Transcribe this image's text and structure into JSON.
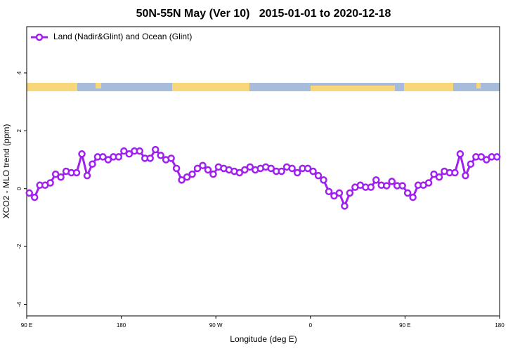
{
  "chart_data": {
    "type": "line",
    "title": "50N-55N May (Ver 10)   2015-01-01 to 2020-12-18",
    "xlabel": "Longitude (deg E)",
    "ylabel": "XCO2 - MLO trend (ppm)",
    "x": [
      92.5,
      97.5,
      102.5,
      107.5,
      112.5,
      117.5,
      122.5,
      127.5,
      132.5,
      137.5,
      142.5,
      147.5,
      152.5,
      157.5,
      162.5,
      167.5,
      172.5,
      177.5,
      182.5,
      187.5,
      192.5,
      197.5,
      202.5,
      207.5,
      212.5,
      217.5,
      222.5,
      227.5,
      232.5,
      237.5,
      242.5,
      247.5,
      252.5,
      257.5,
      262.5,
      267.5,
      272.5,
      277.5,
      282.5,
      287.5,
      292.5,
      297.5,
      302.5,
      307.5,
      312.5,
      317.5,
      322.5,
      327.5,
      332.5,
      337.5,
      342.5,
      347.5,
      352.5,
      357.5,
      362.5,
      367.5,
      372.5,
      377.5,
      382.5,
      387.5,
      392.5,
      397.5,
      402.5,
      407.5,
      412.5,
      417.5,
      422.5,
      427.5,
      432.5,
      437.5,
      442.5,
      447.5,
      452.5,
      457.5,
      462.5,
      467.5,
      472.5,
      477.5,
      482.5,
      487.5,
      492.5,
      497.5,
      502.5,
      507.5,
      512.5,
      517.5,
      522.5,
      527.5,
      532.5,
      537.5
    ],
    "series": [
      {
        "name": "Land (Nadir&Glint) and Ocean (Glint)",
        "color": "#a020f0",
        "values": [
          -0.15,
          -0.3,
          0.12,
          0.12,
          0.2,
          0.5,
          0.4,
          0.6,
          0.55,
          0.55,
          1.2,
          0.45,
          0.85,
          1.1,
          1.1,
          1.0,
          1.1,
          1.1,
          1.3,
          1.2,
          1.3,
          1.3,
          1.05,
          1.05,
          1.35,
          1.15,
          1.0,
          1.05,
          0.7,
          0.3,
          0.4,
          0.5,
          0.7,
          0.8,
          0.65,
          0.5,
          0.75,
          0.7,
          0.65,
          0.6,
          0.55,
          0.65,
          0.75,
          0.65,
          0.7,
          0.75,
          0.7,
          0.6,
          0.6,
          0.75,
          0.7,
          0.55,
          0.7,
          0.7,
          0.6,
          0.45,
          0.3,
          -0.1,
          -0.25,
          -0.15,
          -0.6,
          -0.15,
          0.05,
          0.12,
          0.05,
          0.05,
          0.3,
          0.12,
          0.1,
          0.25,
          0.1,
          0.1,
          -0.15,
          -0.3,
          0.12,
          0.12,
          0.2,
          0.5,
          0.4,
          0.6,
          0.55,
          0.55,
          1.2,
          0.45,
          0.85,
          1.1,
          1.1,
          1.0,
          1.1,
          1.1
        ]
      }
    ],
    "xlim": [
      90,
      540
    ],
    "xticks": [
      {
        "value": 90,
        "label": "90 E"
      },
      180,
      {
        "value": 270,
        "label": "90 W"
      },
      {
        "value": 360,
        "label": "0"
      },
      {
        "value": 450,
        "label": "90 E"
      },
      {
        "value": 540,
        "label": "180"
      }
    ],
    "ylim": [
      -4.4,
      5.6
    ],
    "yticks": [
      -4,
      -2,
      0,
      2,
      4
    ],
    "legend": "top-left"
  }
}
